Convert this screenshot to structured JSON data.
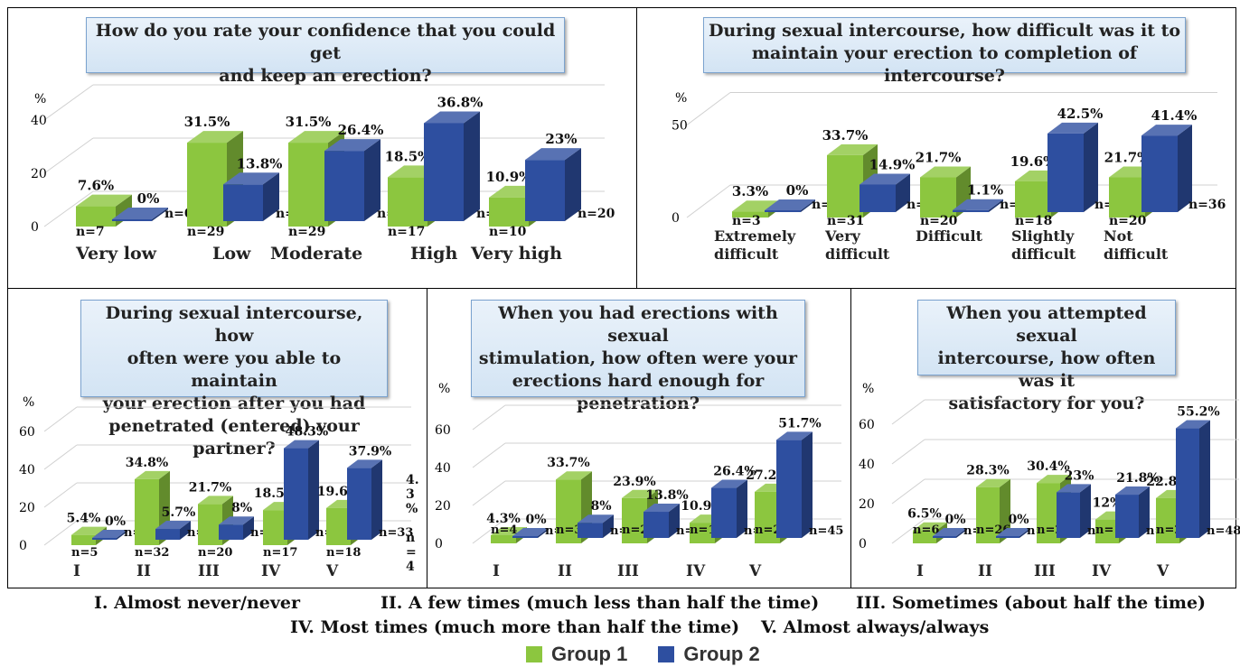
{
  "colors": {
    "group1": "#8cc63f",
    "group2": "#2e4fa0"
  },
  "legend": {
    "group1": "Group 1",
    "group2": "Group 2"
  },
  "footnotes": {
    "line1": [
      "I. Almost never/never",
      "II. A few times (much less than half the time)",
      "III. Sometimes (about half the time)"
    ],
    "line2": [
      "IV. Most times (much more than half the time)",
      "V. Almost always/always"
    ]
  },
  "chart_data": [
    {
      "type": "bar",
      "title": "How do you rate your confidence that you could get\nand keep an erection?",
      "ylabel": "%",
      "yticks": [
        0,
        20,
        40
      ],
      "categories": [
        "Very low",
        "Low",
        "Moderate",
        "High",
        "Very high"
      ],
      "series": [
        {
          "name": "Group 1",
          "values": [
            7.6,
            31.5,
            31.5,
            18.5,
            10.9
          ],
          "labels": [
            "7.6%",
            "31.5%",
            "31.5%",
            "18.5%",
            "10.9%"
          ],
          "n": [
            "n=7",
            "n=29",
            "n=29",
            "n=17",
            "n=10"
          ]
        },
        {
          "name": "Group 2",
          "values": [
            0,
            13.8,
            26.4,
            36.8,
            23
          ],
          "labels": [
            "0%",
            "13.8%",
            "26.4%",
            "36.8%",
            "23%"
          ],
          "n": [
            "n=0",
            "n=12",
            "n=23",
            "n=32",
            "n=20"
          ]
        }
      ]
    },
    {
      "type": "bar",
      "title": "During sexual intercourse, how difficult was it to\nmaintain your erection to completion of intercourse?",
      "ylabel": "%",
      "yticks": [
        0,
        50
      ],
      "categories": [
        "Extremely\ndifficult",
        "Very\ndifficult",
        "Difficult",
        "Slightly\ndifficult",
        "Not\ndifficult"
      ],
      "series": [
        {
          "name": "Group 1",
          "values": [
            3.3,
            33.7,
            21.7,
            19.6,
            21.7
          ],
          "labels": [
            "3.3%",
            "33.7%",
            "21.7%",
            "19.6%",
            "21.7%"
          ],
          "n": [
            "n=3",
            "n=31",
            "n=20",
            "n=18",
            "n=20"
          ]
        },
        {
          "name": "Group 2",
          "values": [
            0,
            14.9,
            1.1,
            42.5,
            41.4
          ],
          "labels": [
            "0%",
            "14.9%",
            "1.1%",
            "42.5%",
            "41.4%"
          ],
          "n": [
            "n=0",
            "n=13",
            "n=1",
            "n=37",
            "n=36"
          ]
        }
      ]
    },
    {
      "type": "bar",
      "title": "During sexual intercourse, how\noften were you able to maintain\nyour erection after you had\npenetrated (entered) your partner?",
      "ylabel": "%",
      "yticks": [
        0,
        20,
        40,
        60
      ],
      "categories": [
        "I",
        "II",
        "III",
        "IV",
        "V"
      ],
      "series": [
        {
          "name": "Group 1",
          "values": [
            5.4,
            34.8,
            21.7,
            18.5,
            19.6
          ],
          "labels": [
            "5.4%",
            "34.8%",
            "21.7%",
            "18.5%",
            "19.6%"
          ],
          "n": [
            "n=5",
            "n=32",
            "n=20",
            "n=17",
            "n=18"
          ]
        },
        {
          "name": "Group 2",
          "values": [
            0,
            5.7,
            8,
            48.3,
            37.9
          ],
          "labels": [
            "0%",
            "5.7%",
            "8%",
            "48.3%",
            "37.9%"
          ],
          "n": [
            "n=0",
            "n=5",
            "n=7",
            "n=42",
            "n=33"
          ]
        }
      ],
      "side_annotation": [
        "4.",
        "3",
        "%",
        "",
        "n",
        "=",
        "4"
      ]
    },
    {
      "type": "bar",
      "title": "When you had erections with sexual\nstimulation, how often were your\nerections hard enough for\npenetration?",
      "ylabel": "%",
      "yticks": [
        0,
        20,
        40,
        60
      ],
      "categories": [
        "I",
        "II",
        "III",
        "IV",
        "V"
      ],
      "series": [
        {
          "name": "Group 1",
          "values": [
            4.3,
            33.7,
            23.9,
            10.9,
            27.2
          ],
          "labels": [
            "4.3%",
            "33.7%",
            "23.9%",
            "10.9%",
            "27.2%"
          ],
          "n": [
            "n=4",
            "n=31",
            "n=22",
            "n=10",
            "n=25"
          ]
        },
        {
          "name": "Group 2",
          "values": [
            0,
            8,
            13.8,
            26.4,
            51.7
          ],
          "labels": [
            "0%",
            "8%",
            "13.8%",
            "26.4%",
            "51.7%"
          ],
          "n": [
            "n=0",
            "n=7",
            "n=12",
            "n=23",
            "n=45"
          ]
        }
      ]
    },
    {
      "type": "bar",
      "title": "When you attempted sexual\nintercourse, how often was it\nsatisfactory for you?",
      "ylabel": "%",
      "yticks": [
        0,
        20,
        40,
        60
      ],
      "categories": [
        "I",
        "II",
        "III",
        "IV",
        "V"
      ],
      "series": [
        {
          "name": "Group 1",
          "values": [
            6.5,
            28.3,
            30.4,
            12,
            22.8
          ],
          "labels": [
            "6.5%",
            "28.3%",
            "30.4%",
            "12%",
            "22.8%"
          ],
          "n": [
            "n=6",
            "n=26",
            "n=28",
            "n=11",
            "n=21"
          ]
        },
        {
          "name": "Group 2",
          "values": [
            0,
            0,
            23,
            21.8,
            55.2
          ],
          "labels": [
            "0%",
            "0%",
            "23%",
            "21.8%",
            "55.2%"
          ],
          "n": [
            "n=0",
            "n=0",
            "n=20",
            "n=19",
            "n=48"
          ]
        }
      ]
    }
  ]
}
